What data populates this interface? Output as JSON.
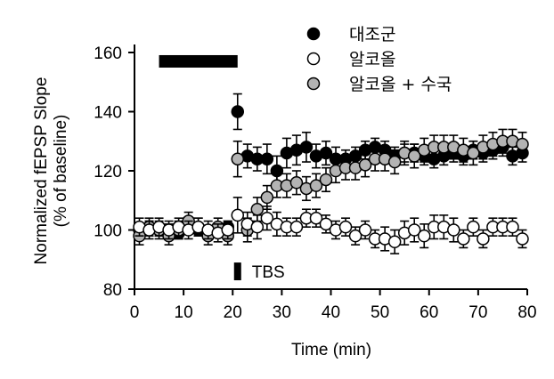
{
  "chart_data": {
    "type": "scatter",
    "xlabel": "Time (min)",
    "ylabel_line1": "Normalized fEPSP Slope",
    "ylabel_line2": "(% of baseline)",
    "xlim": [
      0,
      80
    ],
    "ylim": [
      80,
      160
    ],
    "xticks": [
      0,
      10,
      20,
      30,
      40,
      50,
      60,
      70,
      80
    ],
    "yticks": [
      80,
      100,
      120,
      140,
      160
    ],
    "legend_position": "top-right",
    "conditioning_bar": {
      "x_start": 5,
      "x_end": 21,
      "y": 157
    },
    "tbs": {
      "label": "TBS",
      "x": 21,
      "y_start": 83,
      "y_end": 89
    },
    "series": [
      {
        "name": "대조군",
        "marker": "filled-black",
        "color": "#000000",
        "points": [
          {
            "x": 1,
            "y": 100,
            "err": 2
          },
          {
            "x": 3,
            "y": 101,
            "err": 2
          },
          {
            "x": 5,
            "y": 100,
            "err": 2
          },
          {
            "x": 7,
            "y": 100,
            "err": 2
          },
          {
            "x": 9,
            "y": 99,
            "err": 2
          },
          {
            "x": 11,
            "y": 101,
            "err": 2
          },
          {
            "x": 13,
            "y": 100,
            "err": 2
          },
          {
            "x": 15,
            "y": 99,
            "err": 2
          },
          {
            "x": 17,
            "y": 100,
            "err": 2
          },
          {
            "x": 19,
            "y": 101,
            "err": 2
          },
          {
            "x": 21,
            "y": 140,
            "err": 6
          },
          {
            "x": 23,
            "y": 125,
            "err": 4
          },
          {
            "x": 25,
            "y": 124,
            "err": 4
          },
          {
            "x": 27,
            "y": 124,
            "err": 5
          },
          {
            "x": 29,
            "y": 120,
            "err": 5
          },
          {
            "x": 31,
            "y": 126,
            "err": 5
          },
          {
            "x": 33,
            "y": 127,
            "err": 5
          },
          {
            "x": 35,
            "y": 128,
            "err": 5
          },
          {
            "x": 37,
            "y": 125,
            "err": 4
          },
          {
            "x": 39,
            "y": 126,
            "err": 4
          },
          {
            "x": 41,
            "y": 124,
            "err": 4
          },
          {
            "x": 43,
            "y": 124,
            "err": 3
          },
          {
            "x": 45,
            "y": 125,
            "err": 3
          },
          {
            "x": 47,
            "y": 127,
            "err": 3
          },
          {
            "x": 49,
            "y": 128,
            "err": 3
          },
          {
            "x": 51,
            "y": 127,
            "err": 3
          },
          {
            "x": 53,
            "y": 125,
            "err": 3
          },
          {
            "x": 55,
            "y": 126,
            "err": 3
          },
          {
            "x": 57,
            "y": 126,
            "err": 3
          },
          {
            "x": 59,
            "y": 125,
            "err": 3
          },
          {
            "x": 61,
            "y": 124,
            "err": 3
          },
          {
            "x": 63,
            "y": 125,
            "err": 3
          },
          {
            "x": 65,
            "y": 126,
            "err": 3
          },
          {
            "x": 67,
            "y": 125,
            "err": 3
          },
          {
            "x": 69,
            "y": 127,
            "err": 3
          },
          {
            "x": 71,
            "y": 126,
            "err": 3
          },
          {
            "x": 73,
            "y": 127,
            "err": 3
          },
          {
            "x": 75,
            "y": 128,
            "err": 3
          },
          {
            "x": 77,
            "y": 125,
            "err": 3
          },
          {
            "x": 79,
            "y": 126,
            "err": 3
          }
        ]
      },
      {
        "name": "알코올",
        "marker": "open-white",
        "color": "#ffffff",
        "points": [
          {
            "x": 1,
            "y": 101,
            "err": 3
          },
          {
            "x": 3,
            "y": 100,
            "err": 3
          },
          {
            "x": 5,
            "y": 101,
            "err": 3
          },
          {
            "x": 7,
            "y": 100,
            "err": 3
          },
          {
            "x": 9,
            "y": 101,
            "err": 3
          },
          {
            "x": 11,
            "y": 100,
            "err": 3
          },
          {
            "x": 13,
            "y": 101,
            "err": 3
          },
          {
            "x": 15,
            "y": 100,
            "err": 3
          },
          {
            "x": 17,
            "y": 99,
            "err": 3
          },
          {
            "x": 19,
            "y": 100,
            "err": 3
          },
          {
            "x": 21,
            "y": 105,
            "err": 6
          },
          {
            "x": 23,
            "y": 102,
            "err": 4
          },
          {
            "x": 25,
            "y": 101,
            "err": 4
          },
          {
            "x": 27,
            "y": 104,
            "err": 4
          },
          {
            "x": 29,
            "y": 102,
            "err": 4
          },
          {
            "x": 31,
            "y": 101,
            "err": 3
          },
          {
            "x": 33,
            "y": 101,
            "err": 3
          },
          {
            "x": 35,
            "y": 104,
            "err": 3
          },
          {
            "x": 37,
            "y": 104,
            "err": 3
          },
          {
            "x": 39,
            "y": 102,
            "err": 3
          },
          {
            "x": 41,
            "y": 100,
            "err": 3
          },
          {
            "x": 43,
            "y": 101,
            "err": 3
          },
          {
            "x": 45,
            "y": 98,
            "err": 3
          },
          {
            "x": 47,
            "y": 100,
            "err": 3
          },
          {
            "x": 49,
            "y": 97,
            "err": 3
          },
          {
            "x": 51,
            "y": 97,
            "err": 4
          },
          {
            "x": 53,
            "y": 96,
            "err": 4
          },
          {
            "x": 55,
            "y": 99,
            "err": 4
          },
          {
            "x": 57,
            "y": 100,
            "err": 4
          },
          {
            "x": 59,
            "y": 98,
            "err": 4
          },
          {
            "x": 61,
            "y": 101,
            "err": 4
          },
          {
            "x": 63,
            "y": 101,
            "err": 4
          },
          {
            "x": 65,
            "y": 100,
            "err": 4
          },
          {
            "x": 67,
            "y": 97,
            "err": 3
          },
          {
            "x": 69,
            "y": 101,
            "err": 3
          },
          {
            "x": 71,
            "y": 97,
            "err": 3
          },
          {
            "x": 73,
            "y": 101,
            "err": 3
          },
          {
            "x": 75,
            "y": 101,
            "err": 3
          },
          {
            "x": 77,
            "y": 101,
            "err": 3
          },
          {
            "x": 79,
            "y": 97,
            "err": 3
          }
        ]
      },
      {
        "name": "알코올 + 수국",
        "marker": "filled-gray",
        "color": "#b3b3b3",
        "points": [
          {
            "x": 1,
            "y": 98,
            "err": 3
          },
          {
            "x": 3,
            "y": 101,
            "err": 3
          },
          {
            "x": 5,
            "y": 100,
            "err": 3
          },
          {
            "x": 7,
            "y": 98,
            "err": 3
          },
          {
            "x": 9,
            "y": 100,
            "err": 3
          },
          {
            "x": 11,
            "y": 103,
            "err": 3
          },
          {
            "x": 13,
            "y": 101,
            "err": 3
          },
          {
            "x": 15,
            "y": 98,
            "err": 3
          },
          {
            "x": 17,
            "y": 101,
            "err": 3
          },
          {
            "x": 19,
            "y": 98,
            "err": 3
          },
          {
            "x": 21,
            "y": 124,
            "err": 6
          },
          {
            "x": 23,
            "y": 100,
            "err": 4
          },
          {
            "x": 25,
            "y": 107,
            "err": 4
          },
          {
            "x": 27,
            "y": 111,
            "err": 4
          },
          {
            "x": 29,
            "y": 115,
            "err": 4
          },
          {
            "x": 31,
            "y": 115,
            "err": 4
          },
          {
            "x": 33,
            "y": 116,
            "err": 4
          },
          {
            "x": 35,
            "y": 114,
            "err": 4
          },
          {
            "x": 37,
            "y": 115,
            "err": 4
          },
          {
            "x": 39,
            "y": 117,
            "err": 4
          },
          {
            "x": 41,
            "y": 120,
            "err": 4
          },
          {
            "x": 43,
            "y": 121,
            "err": 4
          },
          {
            "x": 45,
            "y": 121,
            "err": 4
          },
          {
            "x": 47,
            "y": 122,
            "err": 4
          },
          {
            "x": 49,
            "y": 124,
            "err": 4
          },
          {
            "x": 51,
            "y": 124,
            "err": 4
          },
          {
            "x": 53,
            "y": 123,
            "err": 4
          },
          {
            "x": 55,
            "y": 126,
            "err": 4
          },
          {
            "x": 57,
            "y": 125,
            "err": 4
          },
          {
            "x": 59,
            "y": 127,
            "err": 4
          },
          {
            "x": 61,
            "y": 128,
            "err": 4
          },
          {
            "x": 63,
            "y": 128,
            "err": 4
          },
          {
            "x": 65,
            "y": 128,
            "err": 4
          },
          {
            "x": 67,
            "y": 127,
            "err": 4
          },
          {
            "x": 69,
            "y": 126,
            "err": 4
          },
          {
            "x": 71,
            "y": 128,
            "err": 4
          },
          {
            "x": 73,
            "y": 129,
            "err": 4
          },
          {
            "x": 75,
            "y": 130,
            "err": 4
          },
          {
            "x": 77,
            "y": 130,
            "err": 4
          },
          {
            "x": 79,
            "y": 129,
            "err": 4
          }
        ]
      }
    ]
  }
}
